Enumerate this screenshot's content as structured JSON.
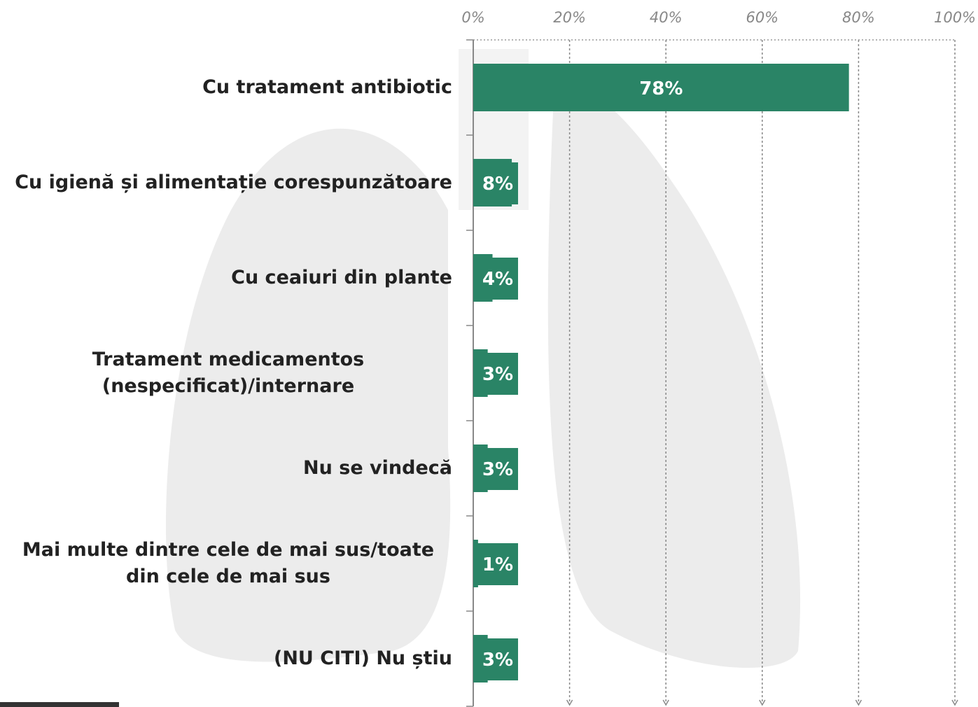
{
  "chart_data": {
    "type": "bar",
    "orientation": "horizontal",
    "categories": [
      "Cu tratament antibiotic",
      "Cu igienă și alimentație corespunzătoare",
      "Cu ceaiuri din plante",
      "Tratament medicamentos (nespecificat)/internare",
      "Nu se vindecă",
      "Mai multe dintre cele de mai sus/toate din cele de mai sus",
      "(NU CITI) Nu știu"
    ],
    "values": [
      78,
      8,
      4,
      3,
      3,
      1,
      3
    ],
    "value_labels": [
      "78%",
      "8%",
      "4%",
      "3%",
      "3%",
      "1%",
      "3%"
    ],
    "color": "#2a8466",
    "xlim": [
      0,
      100
    ],
    "xticks": [
      {
        "value": 0,
        "label": "0%"
      },
      {
        "value": 20,
        "label": "20%"
      },
      {
        "value": 40,
        "label": "40%"
      },
      {
        "value": 60,
        "label": "60%"
      },
      {
        "value": 80,
        "label": "80%"
      },
      {
        "value": 100,
        "label": "100%"
      }
    ],
    "grid": true
  }
}
